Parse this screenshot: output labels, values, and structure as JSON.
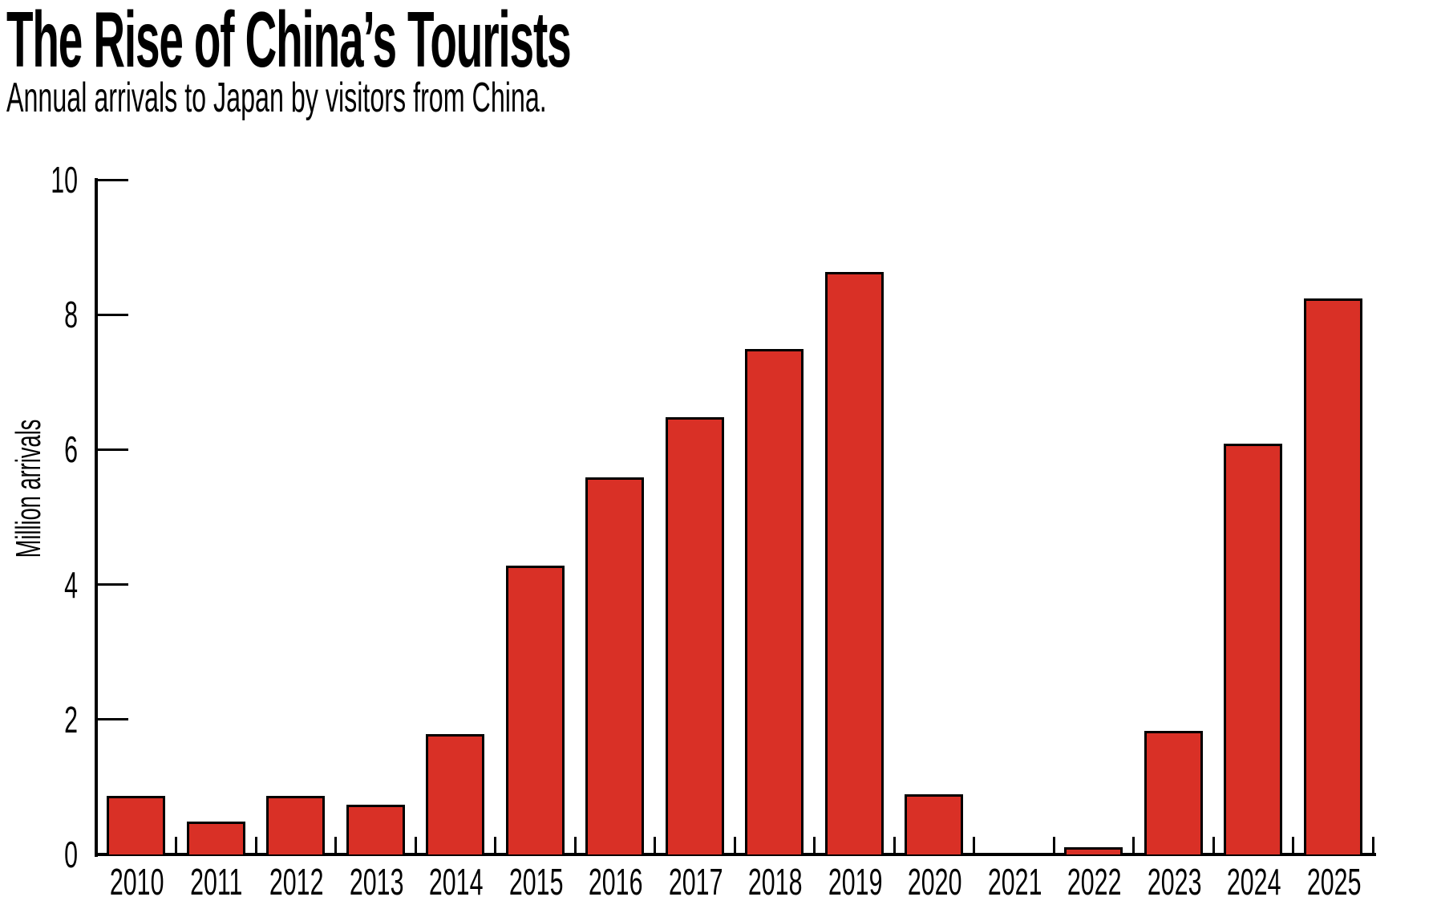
{
  "page": {
    "background": "#ffffff"
  },
  "chart_data": {
    "type": "bar",
    "title": "The Rise of China’s Tourists",
    "subtitle": "Annual arrivals to Japan by visitors from China.",
    "ylabel": "Million arrivals",
    "xlabel": "",
    "categories": [
      "2010",
      "2011",
      "2012",
      "2013",
      "2014",
      "2015",
      "2016",
      "2017",
      "2018",
      "2019",
      "2020",
      "2021",
      "2022",
      "2023",
      "2024",
      "2025"
    ],
    "values": [
      0.83,
      0.45,
      0.83,
      0.7,
      1.75,
      4.25,
      5.55,
      6.45,
      7.45,
      8.6,
      0.86,
      0,
      0.07,
      1.8,
      6.05,
      8.2
    ],
    "ylim": [
      0,
      10
    ],
    "yticks": [
      0,
      2,
      4,
      6,
      8,
      10
    ],
    "grid": false,
    "legend": null,
    "bar_color": "#d93026",
    "bar_outline": "#000000",
    "axis_color": "#000000",
    "text_color": "#000000"
  }
}
